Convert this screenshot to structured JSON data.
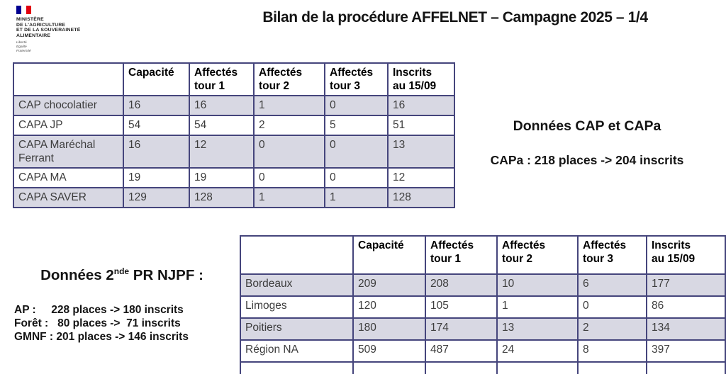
{
  "page": {
    "title": "Bilan de la procédure AFFELNET – Campagne 2025 – 1/4"
  },
  "logo": {
    "ministry_lines": [
      "MINISTÈRE",
      "DE L'AGRICULTURE",
      "ET DE LA SOUVERAINETÉ",
      "ALIMENTAIRE"
    ],
    "motto_lines": [
      "Liberté",
      "Égalité",
      "Fraternité"
    ]
  },
  "colors": {
    "flag_blue": "#000091",
    "flag_white": "#ffffff",
    "flag_red": "#e1000f",
    "table_border": "#45457c",
    "row_shade": "#d8d8e3"
  },
  "cap_capa": {
    "heading": "Données CAP et CAPa",
    "summary": "CAPa : 218 places -> 204 inscrits",
    "table": {
      "columns": [
        "",
        "Capacité",
        "Affectés\ntour 1",
        "Affectés\ntour 2",
        "Affectés\ntour 3",
        "Inscrits\nau 15/09"
      ],
      "rows": [
        {
          "label": "CAP chocolatier",
          "values": [
            "16",
            "16",
            "1",
            "0",
            "16"
          ]
        },
        {
          "label": "CAPA JP",
          "values": [
            "54",
            "54",
            "2",
            "5",
            "51"
          ]
        },
        {
          "label": "CAPA Maréchal Ferrant",
          "values": [
            "16",
            "12",
            "0",
            "0",
            "13"
          ]
        },
        {
          "label": "CAPA MA",
          "values": [
            "19",
            "19",
            "0",
            "0",
            "12"
          ]
        },
        {
          "label": "CAPA SAVER",
          "values": [
            "129",
            "128",
            "1",
            "1",
            "128"
          ]
        }
      ]
    }
  },
  "njpf": {
    "heading_base": "Données 2",
    "heading_sup": "nde",
    "heading_rest": " PR NJPF :",
    "lines": [
      "AP :     228 places -> 180 inscrits",
      "Forêt :   80 places ->  71 inscrits",
      "GMNF : 201 places -> 146 inscrits"
    ]
  },
  "region": {
    "table": {
      "columns": [
        "",
        "Capacité",
        "Affectés\ntour 1",
        "Affectés\ntour 2",
        "Affectés\ntour 3",
        "Inscrits\nau 15/09"
      ],
      "rows": [
        {
          "label": "Bordeaux",
          "values": [
            "209",
            "208",
            "10",
            "6",
            "177"
          ]
        },
        {
          "label": "Limoges",
          "values": [
            "120",
            "105",
            "1",
            "0",
            "86"
          ]
        },
        {
          "label": "Poitiers",
          "values": [
            "180",
            "174",
            "13",
            "2",
            "134"
          ]
        },
        {
          "label": "Région NA",
          "values": [
            "509",
            "487",
            "24",
            "8",
            "397"
          ]
        },
        {
          "label": "",
          "values": [
            "",
            "",
            "",
            "",
            ""
          ]
        }
      ]
    }
  }
}
